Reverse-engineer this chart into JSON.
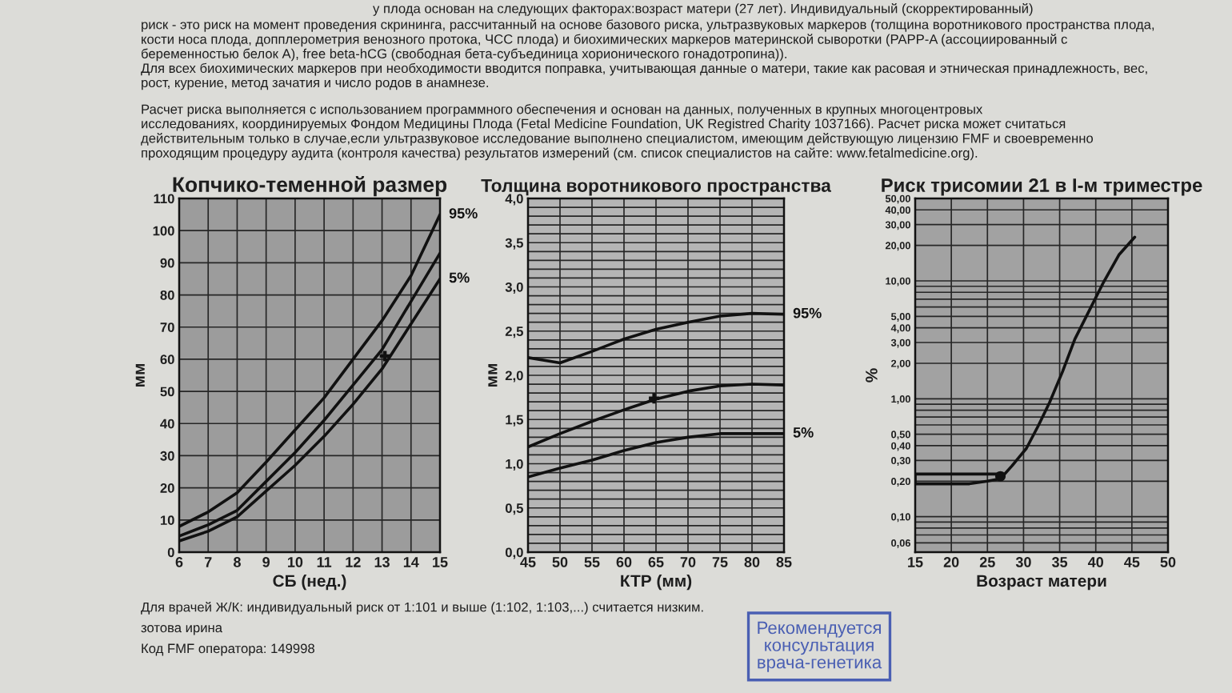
{
  "chart_data": [
    {
      "type": "other",
      "annotations": [
        "у плода основан на следующих факторах:возраст матери (27 лет). Индивидуальный (скорректированный)",
        "риск - это риск на момент проведения скрининга, рассчитанный на основе базового риска, ультразвуковых маркеров (толщина воротникового пространства плода,\nкости носа плода, допплерометрия венозного протока, ЧСС плода) и биохимических маркеров материнской сыворотки (PAPP-A (ассоциированный с\nбеременностью белок А), free beta-hCG (свободная бета-субъединица хорионического гонадотропина)).\nДля всех биохимических маркеров при необходимости вводится поправка, учитывающая данные о матери, такие как расовая и этническая принадлежность, вес,\nрост, курение, метод зачатия и число родов в анамнезе.",
        "Расчет риска выполняется с использованием программного обеспечения и основан на данных, полученных в крупных многоцентровых\nисследованиях, координируемых Фондом Медицины Плода (Fetal Medicine Foundation, UK Registred Charity 1037166). Расчет риска может считаться\nдействительным только в случае,если ультразвуковое исследование выполнено специалистом, имеющим действующую лицензию FMF и своевременно\nпроходящим процедуру аудита (контроля качества) результатов измерений (см. список специалистов на сайте: www.fetalmedicine.org)."
      ]
    },
    {
      "type": "line",
      "title": "Копчико-теменной размер",
      "xlabel": "СБ (нед.)",
      "ylabel": "мм",
      "x": [
        6,
        7,
        8,
        9,
        10,
        11,
        12,
        13,
        14,
        15
      ],
      "xlim": [
        6,
        15
      ],
      "xticks": [
        6,
        7,
        8,
        9,
        10,
        11,
        12,
        13,
        14,
        15
      ],
      "ylim": [
        0,
        110
      ],
      "yticks": [
        0,
        10,
        20,
        30,
        40,
        50,
        60,
        70,
        80,
        90,
        100,
        110
      ],
      "grid": true,
      "series": [
        {
          "name": "95%",
          "color": "#111111",
          "values": [
            8,
            12.5,
            18.5,
            28,
            38,
            48,
            60,
            72,
            86,
            105
          ]
        },
        {
          "color": "#111111",
          "values": [
            5,
            8.5,
            13,
            22,
            31,
            41,
            52,
            63,
            78,
            93
          ]
        },
        {
          "name": "5%",
          "color": "#111111",
          "values": [
            3.5,
            6.5,
            11,
            19,
            27,
            36,
            46,
            57,
            71,
            85
          ]
        },
        {
          "type": "scatter",
          "marker": "cross",
          "color": "#111111",
          "x": [
            13.1
          ],
          "values": [
            61
          ]
        }
      ]
    },
    {
      "type": "line",
      "title": "Толщина воротникового пространства",
      "xlabel": "КТР (мм)",
      "ylabel": "мм",
      "x": [
        45,
        50,
        55,
        60,
        65,
        70,
        75,
        80,
        85
      ],
      "xlim": [
        45,
        85
      ],
      "xticks": [
        45,
        50,
        55,
        60,
        65,
        70,
        75,
        80,
        85
      ],
      "ylim": [
        0,
        4
      ],
      "yticks": [
        {
          "value": 0,
          "label": "0,0"
        },
        {
          "value": 0.1,
          "label": null
        },
        {
          "value": 0.2,
          "label": null
        },
        {
          "value": 0.3,
          "label": null
        },
        {
          "value": 0.4,
          "label": null
        },
        {
          "value": 0.5,
          "label": "0,5"
        },
        {
          "value": 0.6,
          "label": null
        },
        {
          "value": 0.7,
          "label": null
        },
        {
          "value": 0.8,
          "label": null
        },
        {
          "value": 0.9,
          "label": null
        },
        {
          "value": 1,
          "label": "1,0"
        },
        {
          "value": 1.1,
          "label": null
        },
        {
          "value": 1.2,
          "label": null
        },
        {
          "value": 1.3,
          "label": null
        },
        {
          "value": 1.4,
          "label": null
        },
        {
          "value": 1.5,
          "label": "1,5"
        },
        {
          "value": 1.6,
          "label": null
        },
        {
          "value": 1.7,
          "label": null
        },
        {
          "value": 1.8,
          "label": null
        },
        {
          "value": 1.9,
          "label": null
        },
        {
          "value": 2,
          "label": "2,0"
        },
        {
          "value": 2.1,
          "label": null
        },
        {
          "value": 2.2,
          "label": null
        },
        {
          "value": 2.3,
          "label": null
        },
        {
          "value": 2.4,
          "label": null
        },
        {
          "value": 2.5,
          "label": "2,5"
        },
        {
          "value": 2.6,
          "label": null
        },
        {
          "value": 2.7,
          "label": null
        },
        {
          "value": 2.8,
          "label": null
        },
        {
          "value": 2.9,
          "label": null
        },
        {
          "value": 3,
          "label": "3,0"
        },
        {
          "value": 3.1,
          "label": null
        },
        {
          "value": 3.2,
          "label": null
        },
        {
          "value": 3.3,
          "label": null
        },
        {
          "value": 3.4,
          "label": null
        },
        {
          "value": 3.5,
          "label": "3,5"
        },
        {
          "value": 3.6,
          "label": null
        },
        {
          "value": 3.7,
          "label": null
        },
        {
          "value": 3.8,
          "label": null
        },
        {
          "value": 3.9,
          "label": null
        },
        {
          "value": 4,
          "label": "4,0"
        }
      ],
      "grid": true,
      "series": [
        {
          "name": "95%",
          "color": "#111111",
          "values": [
            2.2,
            2.14,
            2.27,
            2.41,
            2.52,
            2.6,
            2.67,
            2.7,
            2.69
          ]
        },
        {
          "color": "#111111",
          "values": [
            1.19,
            1.34,
            1.48,
            1.61,
            1.73,
            1.82,
            1.88,
            1.9,
            1.89
          ]
        },
        {
          "name": "5%",
          "color": "#111111",
          "values": [
            0.85,
            0.95,
            1.04,
            1.15,
            1.24,
            1.3,
            1.34,
            1.34,
            1.34
          ]
        },
        {
          "type": "scatter",
          "marker": "cross",
          "color": "#111111",
          "x": [
            64.7
          ],
          "values": [
            1.74
          ]
        }
      ]
    },
    {
      "type": "line",
      "title": "Риск трисомии 21 в I-м триместре",
      "xlabel": "Возраст матери",
      "ylabel": "%",
      "log": true,
      "xlim": [
        15,
        50
      ],
      "xticks": [
        15,
        20,
        25,
        30,
        35,
        40,
        45,
        50
      ],
      "ylim": [
        0.05,
        50
      ],
      "yticks": [
        {
          "value": 0.06,
          "label": "0,06"
        },
        {
          "value": 0.07,
          "label": null
        },
        {
          "value": 0.08,
          "label": null
        },
        {
          "value": 0.09,
          "label": null
        },
        {
          "value": 0.1,
          "label": "0,10"
        },
        {
          "value": 0.2,
          "label": "0,20"
        },
        {
          "value": 0.3,
          "label": "0,30"
        },
        {
          "value": 0.4,
          "label": "0,40"
        },
        {
          "value": 0.5,
          "label": "0,50"
        },
        {
          "value": 0.6,
          "label": null
        },
        {
          "value": 0.7,
          "label": null
        },
        {
          "value": 0.8,
          "label": null
        },
        {
          "value": 0.9,
          "label": null
        },
        {
          "value": 1,
          "label": "1,00"
        },
        {
          "value": 2,
          "label": "2,00"
        },
        {
          "value": 3,
          "label": "3,00"
        },
        {
          "value": 4,
          "label": "4,00"
        },
        {
          "value": 5,
          "label": "5,00"
        },
        {
          "value": 6,
          "label": null
        },
        {
          "value": 7,
          "label": null
        },
        {
          "value": 8,
          "label": null
        },
        {
          "value": 9,
          "label": null
        },
        {
          "value": 10,
          "label": "10,00"
        },
        {
          "value": 20,
          "label": "20,00"
        },
        {
          "value": 30,
          "label": "30,00"
        },
        {
          "value": 40,
          "label": "40,00"
        },
        {
          "value": 50,
          "label": "50,00"
        }
      ],
      "grid": true,
      "series": [
        {
          "color": "#111111",
          "x": [
            15,
            22.5,
            25,
            26.8,
            28.4,
            30.4,
            32.1,
            33.6,
            35.4,
            37.1,
            38.9,
            41.1,
            43.2,
            45.4
          ],
          "values": [
            0.19,
            0.19,
            0.2,
            0.21,
            0.27,
            0.38,
            0.6,
            0.93,
            1.7,
            3.2,
            5.3,
            9.8,
            16.6,
            23.5
          ]
        },
        {
          "color": "#111111",
          "x": [
            15,
            15,
            26.8
          ],
          "values": [
            0.19,
            0.23,
            0.23
          ]
        },
        {
          "type": "scatter",
          "marker": "circle",
          "color": "#111111",
          "x": [
            26.8
          ],
          "values": [
            0.22
          ]
        }
      ]
    },
    {
      "type": "other",
      "annotations": [
        "Для врачей Ж/К: индивидуальный риск от 1:101 и выше (1:102, 1:103,...) считается низким.",
        "зотова ирина",
        "Код FMF оператора: 149998"
      ]
    },
    {
      "type": "other",
      "annotations": [
        "Рекомендуется\nконсультация\nврача-генетика"
      ]
    }
  ]
}
